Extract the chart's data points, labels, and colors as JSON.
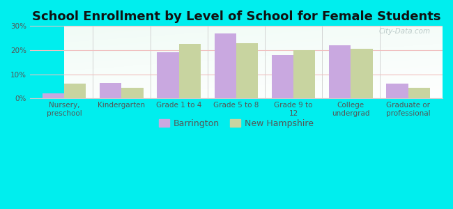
{
  "title": "School Enrollment by Level of School for Female Students",
  "categories": [
    "Nursery,\npreschool",
    "Kindergarten",
    "Grade 1 to 4",
    "Grade 5 to 8",
    "Grade 9 to\n12",
    "College\nundergrad",
    "Graduate or\nprofessional"
  ],
  "barrington": [
    2.0,
    6.5,
    19.0,
    27.0,
    18.0,
    22.0,
    6.0
  ],
  "new_hampshire": [
    6.0,
    4.5,
    22.5,
    23.0,
    20.0,
    20.5,
    4.5
  ],
  "bar_color_barrington": "#c9a8e0",
  "bar_color_nh": "#c8d4a0",
  "background_color": "#00eeee",
  "ylim": [
    0,
    30
  ],
  "yticks": [
    0,
    10,
    20,
    30
  ],
  "ytick_labels": [
    "0%",
    "10%",
    "20%",
    "30%"
  ],
  "legend_barrington": "Barrington",
  "legend_nh": "New Hampshire",
  "bar_width": 0.38,
  "title_fontsize": 13,
  "tick_fontsize": 7.5,
  "legend_fontsize": 9
}
